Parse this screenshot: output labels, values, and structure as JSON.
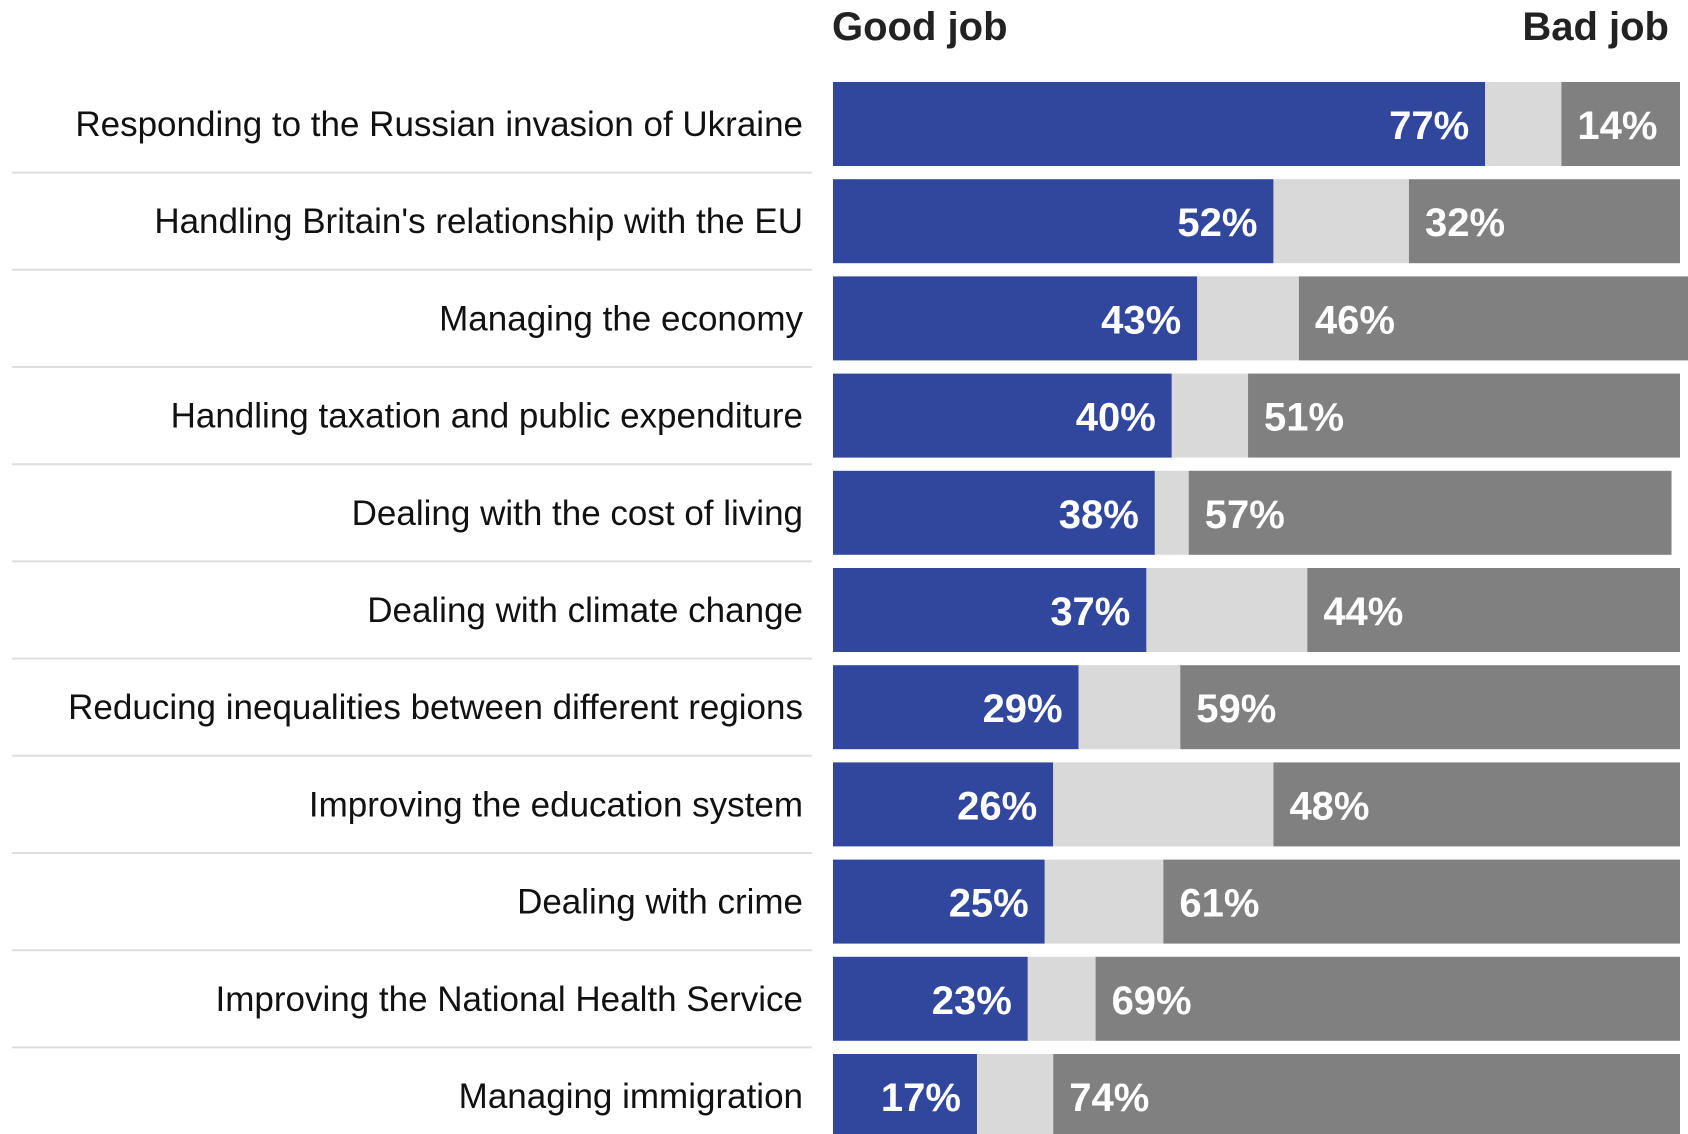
{
  "chart_data": {
    "type": "bar",
    "orientation": "horizontal",
    "stacked": true,
    "headers": {
      "left": "Good job",
      "right": "Bad job"
    },
    "categories": [
      "Responding to the Russian invasion of Ukraine",
      "Handling Britain's relationship with the EU",
      "Managing the economy",
      "Handling taxation and public expenditure",
      "Dealing with the cost of living",
      "Dealing with climate change",
      "Reducing inequalities between different regions",
      "Improving the education system",
      "Dealing with crime",
      "Improving the National Health Service",
      "Managing immigration"
    ],
    "series": [
      {
        "name": "Good job",
        "color": "#31479e",
        "values": [
          77,
          52,
          43,
          40,
          38,
          37,
          29,
          26,
          25,
          23,
          17
        ],
        "labels": [
          "77%",
          "52%",
          "43%",
          "40%",
          "38%",
          "37%",
          "29%",
          "26%",
          "25%",
          "23%",
          "17%"
        ]
      },
      {
        "color": "#d9d9d9",
        "values": [
          9,
          16,
          12,
          9,
          4,
          19,
          12,
          26,
          14,
          8,
          9
        ]
      },
      {
        "name": "Bad job",
        "color": "#808080",
        "values": [
          14,
          32,
          46,
          51,
          57,
          44,
          59,
          48,
          61,
          69,
          74
        ],
        "labels": [
          "14%",
          "32%",
          "46%",
          "51%",
          "57%",
          "44%",
          "59%",
          "48%",
          "61%",
          "69%",
          "74%"
        ]
      }
    ],
    "xlim": [
      0,
      100
    ],
    "grid": false,
    "legend": "top"
  }
}
